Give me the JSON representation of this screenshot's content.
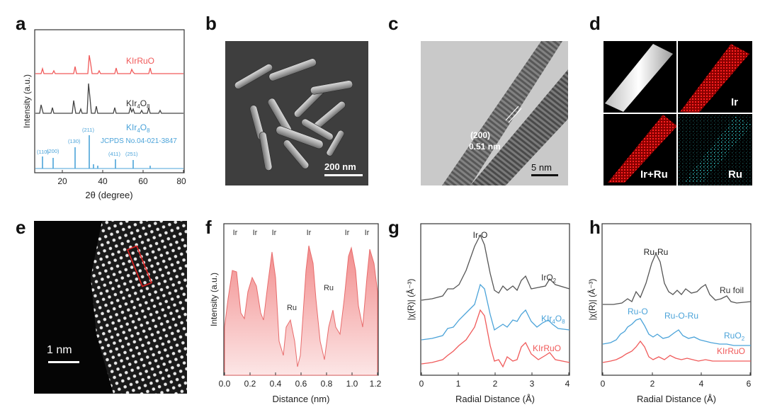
{
  "panels": {
    "a": {
      "letter": "a",
      "ylabel": "Intensity (a.u.)",
      "xlabel": "2θ (degree)",
      "xticks": [
        "20",
        "40",
        "60",
        "80"
      ],
      "label_kirruo": "KIrRuO",
      "label_kir4o8_base": "KIr",
      "label_kir4o8_sub1": "4",
      "label_kir4o8_O": "O",
      "label_kir4o8_sub2": "8",
      "label_ref_base": "KIr",
      "label_ref_sub1": "4",
      "label_ref_O": "O",
      "label_ref_sub2": "8",
      "label_jcpds": "JCPDS No.04-021-3847",
      "hkl": [
        "(110)",
        "(200)",
        "(130)",
        "(211)",
        "(411)",
        "(251)"
      ],
      "colors": {
        "kirruo": "#f05a5a",
        "kir4o8": "#444444",
        "ref": "#4ba3d9"
      }
    },
    "b": {
      "letter": "b",
      "scalebar": "200 nm"
    },
    "c": {
      "letter": "c",
      "scalebar": "5 nm",
      "plane": "(200)",
      "spacing": "0.51 nm"
    },
    "d": {
      "letter": "d",
      "ir": "Ir",
      "irru": "Ir+Ru",
      "ru": "Ru"
    },
    "e": {
      "letter": "e",
      "scalebar": "1 nm"
    },
    "f": {
      "letter": "f",
      "ylabel": "Intensity (a.u.)",
      "xlabel": "Distance (nm)",
      "xticks": [
        "0.0",
        "0.2",
        "0.4",
        "0.6",
        "0.8",
        "1.0",
        "1.2"
      ],
      "top_labels": [
        "Ir",
        "Ir",
        "Ir",
        "Ir",
        "Ir",
        "Ir"
      ],
      "ru_labels": [
        "Ru",
        "Ru"
      ]
    },
    "g": {
      "letter": "g",
      "ylabel": "|χ(R)| (Å⁻³)",
      "xlabel": "Radial Distance (Å)",
      "xticks": [
        "0",
        "1",
        "2",
        "3",
        "4"
      ],
      "peak": "Ir-O",
      "label_iro2": "IrO",
      "label_iro2_sub": "2",
      "label_kir_base": "KIr",
      "label_kir_sub1": "4",
      "label_kir_O": "O",
      "label_kir_sub2": "8",
      "label_kirruo": "KIrRuO"
    },
    "h": {
      "letter": "h",
      "ylabel": "|χ(R)| (Å⁻³)",
      "xlabel": "Radial Distance (Å)",
      "xticks": [
        "0",
        "2",
        "4",
        "6"
      ],
      "peak_ruru": "Ru-Ru",
      "peak_ruo": "Ru-O",
      "peak_ruoru": "Ru-O-Ru",
      "label_foil": "Ru foil",
      "label_ruo2": "RuO",
      "label_ruo2_sub": "2",
      "label_kirruo": "KIrRuO"
    }
  }
}
